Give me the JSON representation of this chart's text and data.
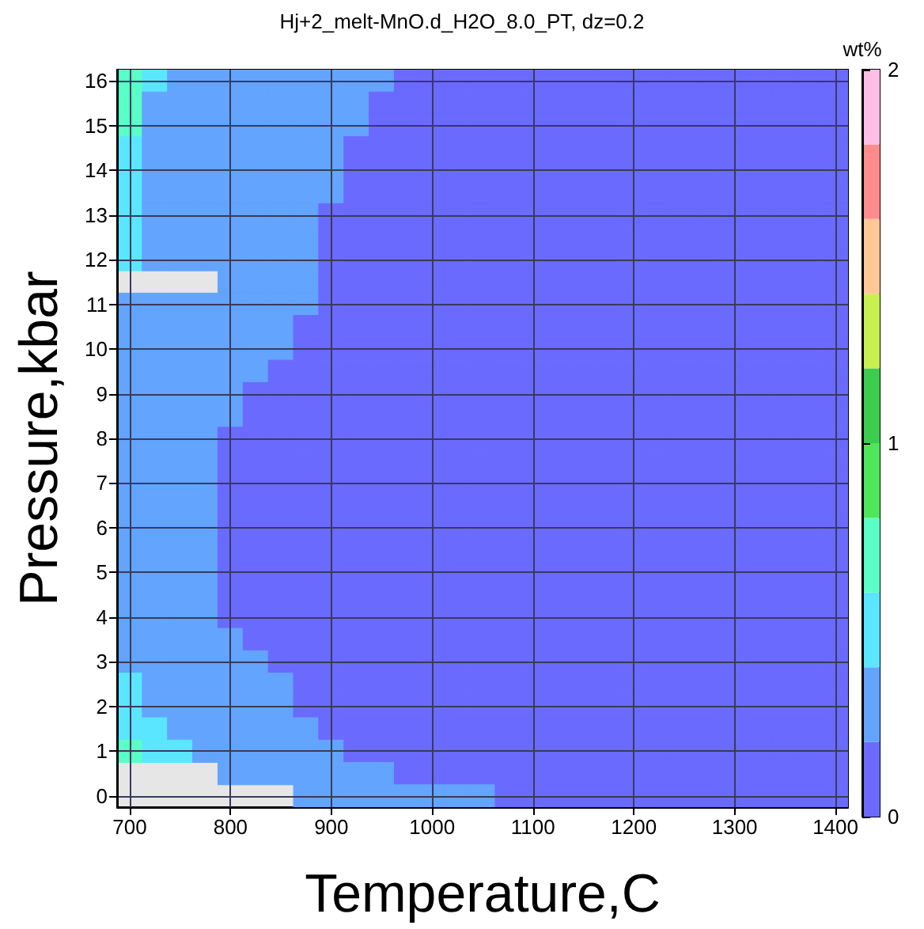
{
  "chart_data": {
    "type": "heatmap",
    "title": "Hj+2_melt-MnO.d_H2O_8.0_PT, dz=0.2",
    "xlabel": "Temperature,C",
    "ylabel": "Pressure,kbar",
    "clabel": "wt%",
    "categories": [
      "700",
      null,
      null,
      null,
      "800",
      null,
      null,
      null,
      "900",
      null,
      null,
      null,
      "1000",
      null,
      null,
      null,
      "1100",
      null,
      null,
      null,
      "1200",
      null,
      null,
      null,
      "1300",
      null,
      null,
      null,
      "1400"
    ],
    "y_categories": [
      "16",
      null,
      "15",
      null,
      "14",
      null,
      "13",
      null,
      "12",
      null,
      "11",
      null,
      "10",
      null,
      "9",
      null,
      "8",
      null,
      "7",
      null,
      "6",
      null,
      "5",
      null,
      "4",
      null,
      "3",
      null,
      "2",
      null,
      "1",
      null,
      "0"
    ],
    "clim": [
      0,
      2
    ],
    "cticks": [
      0,
      1,
      2
    ],
    "grid": true,
    "cells": [
      [
        0.7,
        0.5,
        0.3,
        0.3,
        0.3,
        0.3,
        0.3,
        0.3,
        0.3,
        0.3,
        0.3,
        0.1,
        0.1,
        0.1,
        0.1,
        0.1,
        0.1,
        0.1,
        0.1,
        0.1,
        0.1,
        0.1,
        0.1,
        0.1,
        0.1,
        0.1,
        0.1,
        0.1,
        0.1
      ],
      [
        0.7,
        0.3,
        0.3,
        0.3,
        0.3,
        0.3,
        0.3,
        0.3,
        0.3,
        0.3,
        0.1,
        0.1,
        0.1,
        0.1,
        0.1,
        0.1,
        0.1,
        0.1,
        0.1,
        0.1,
        0.1,
        0.1,
        0.1,
        0.1,
        0.1,
        0.1,
        0.1,
        0.1,
        0.1
      ],
      [
        0.7,
        0.3,
        0.3,
        0.3,
        0.3,
        0.3,
        0.3,
        0.3,
        0.3,
        0.3,
        0.1,
        0.1,
        0.1,
        0.1,
        0.1,
        0.1,
        0.1,
        0.1,
        0.1,
        0.1,
        0.1,
        0.1,
        0.1,
        0.1,
        0.1,
        0.1,
        0.1,
        0.1,
        0.1
      ],
      [
        0.5,
        0.3,
        0.3,
        0.3,
        0.3,
        0.3,
        0.3,
        0.3,
        0.3,
        0.1,
        0.1,
        0.1,
        0.1,
        0.1,
        0.1,
        0.1,
        0.1,
        0.1,
        0.1,
        0.1,
        0.1,
        0.1,
        0.1,
        0.1,
        0.1,
        0.1,
        0.1,
        0.1,
        0.1
      ],
      [
        0.5,
        0.3,
        0.3,
        0.3,
        0.3,
        0.3,
        0.3,
        0.3,
        0.3,
        0.1,
        0.1,
        0.1,
        0.1,
        0.1,
        0.1,
        0.1,
        0.1,
        0.1,
        0.1,
        0.1,
        0.1,
        0.1,
        0.1,
        0.1,
        0.1,
        0.1,
        0.1,
        0.1,
        0.1
      ],
      [
        0.5,
        0.3,
        0.3,
        0.3,
        0.3,
        0.3,
        0.3,
        0.3,
        0.3,
        0.1,
        0.1,
        0.1,
        0.1,
        0.1,
        0.1,
        0.1,
        0.1,
        0.1,
        0.1,
        0.1,
        0.1,
        0.1,
        0.1,
        0.1,
        0.1,
        0.1,
        0.1,
        0.1,
        0.1
      ],
      [
        0.5,
        0.3,
        0.3,
        0.3,
        0.3,
        0.3,
        0.3,
        0.3,
        0.1,
        0.1,
        0.1,
        0.1,
        0.1,
        0.1,
        0.1,
        0.1,
        0.1,
        0.1,
        0.1,
        0.1,
        0.1,
        0.1,
        0.1,
        0.1,
        0.1,
        0.1,
        0.1,
        0.1,
        0.1
      ],
      [
        0.5,
        0.3,
        0.3,
        0.3,
        0.3,
        0.3,
        0.3,
        0.3,
        0.1,
        0.1,
        0.1,
        0.1,
        0.1,
        0.1,
        0.1,
        0.1,
        0.1,
        0.1,
        0.1,
        0.1,
        0.1,
        0.1,
        0.1,
        0.1,
        0.1,
        0.1,
        0.1,
        0.1,
        0.1
      ],
      [
        0.5,
        0.3,
        0.3,
        0.3,
        0.3,
        0.3,
        0.3,
        0.3,
        0.1,
        0.1,
        0.1,
        0.1,
        0.1,
        0.1,
        0.1,
        0.1,
        0.1,
        0.1,
        0.1,
        0.1,
        0.1,
        0.1,
        0.1,
        0.1,
        0.1,
        0.1,
        0.1,
        0.1,
        0.1
      ],
      [
        null,
        null,
        null,
        null,
        0.3,
        0.3,
        0.3,
        0.3,
        0.1,
        0.1,
        0.1,
        0.1,
        0.1,
        0.1,
        0.1,
        0.1,
        0.1,
        0.1,
        0.1,
        0.1,
        0.1,
        0.1,
        0.1,
        0.1,
        0.1,
        0.1,
        0.1,
        0.1,
        0.1
      ],
      [
        0.3,
        0.3,
        0.3,
        0.3,
        0.3,
        0.3,
        0.3,
        0.3,
        0.1,
        0.1,
        0.1,
        0.1,
        0.1,
        0.1,
        0.1,
        0.1,
        0.1,
        0.1,
        0.1,
        0.1,
        0.1,
        0.1,
        0.1,
        0.1,
        0.1,
        0.1,
        0.1,
        0.1,
        0.1
      ],
      [
        0.3,
        0.3,
        0.3,
        0.3,
        0.3,
        0.3,
        0.3,
        0.1,
        0.1,
        0.1,
        0.1,
        0.1,
        0.1,
        0.1,
        0.1,
        0.1,
        0.1,
        0.1,
        0.1,
        0.1,
        0.1,
        0.1,
        0.1,
        0.1,
        0.1,
        0.1,
        0.1,
        0.1,
        0.1
      ],
      [
        0.3,
        0.3,
        0.3,
        0.3,
        0.3,
        0.3,
        0.3,
        0.1,
        0.1,
        0.1,
        0.1,
        0.1,
        0.1,
        0.1,
        0.1,
        0.1,
        0.1,
        0.1,
        0.1,
        0.1,
        0.1,
        0.1,
        0.1,
        0.1,
        0.1,
        0.1,
        0.1,
        0.1,
        0.1
      ],
      [
        0.3,
        0.3,
        0.3,
        0.3,
        0.3,
        0.3,
        0.1,
        0.1,
        0.1,
        0.1,
        0.1,
        0.1,
        0.1,
        0.1,
        0.1,
        0.1,
        0.1,
        0.1,
        0.1,
        0.1,
        0.1,
        0.1,
        0.1,
        0.1,
        0.1,
        0.1,
        0.1,
        0.1,
        0.1
      ],
      [
        0.3,
        0.3,
        0.3,
        0.3,
        0.3,
        0.1,
        0.1,
        0.1,
        0.1,
        0.1,
        0.1,
        0.1,
        0.1,
        0.1,
        0.1,
        0.1,
        0.1,
        0.1,
        0.1,
        0.1,
        0.1,
        0.1,
        0.1,
        0.1,
        0.1,
        0.1,
        0.1,
        0.1,
        0.1
      ],
      [
        0.3,
        0.3,
        0.3,
        0.3,
        0.3,
        0.1,
        0.1,
        0.1,
        0.1,
        0.1,
        0.1,
        0.1,
        0.1,
        0.1,
        0.1,
        0.1,
        0.1,
        0.1,
        0.1,
        0.1,
        0.1,
        0.1,
        0.1,
        0.1,
        0.1,
        0.1,
        0.1,
        0.1,
        0.1
      ],
      [
        0.3,
        0.3,
        0.3,
        0.3,
        0.1,
        0.1,
        0.1,
        0.1,
        0.1,
        0.1,
        0.1,
        0.1,
        0.1,
        0.1,
        0.1,
        0.1,
        0.1,
        0.1,
        0.1,
        0.1,
        0.1,
        0.1,
        0.1,
        0.1,
        0.1,
        0.1,
        0.1,
        0.1,
        0.1
      ],
      [
        0.3,
        0.3,
        0.3,
        0.3,
        0.1,
        0.1,
        0.1,
        0.1,
        0.1,
        0.1,
        0.1,
        0.1,
        0.1,
        0.1,
        0.1,
        0.1,
        0.1,
        0.1,
        0.1,
        0.1,
        0.1,
        0.1,
        0.1,
        0.1,
        0.1,
        0.1,
        0.1,
        0.1,
        0.1
      ],
      [
        0.3,
        0.3,
        0.3,
        0.3,
        0.1,
        0.1,
        0.1,
        0.1,
        0.1,
        0.1,
        0.1,
        0.1,
        0.1,
        0.1,
        0.1,
        0.1,
        0.1,
        0.1,
        0.1,
        0.1,
        0.1,
        0.1,
        0.1,
        0.1,
        0.1,
        0.1,
        0.1,
        0.1,
        0.1
      ],
      [
        0.3,
        0.3,
        0.3,
        0.3,
        0.1,
        0.1,
        0.1,
        0.1,
        0.1,
        0.1,
        0.1,
        0.1,
        0.1,
        0.1,
        0.1,
        0.1,
        0.1,
        0.1,
        0.1,
        0.1,
        0.1,
        0.1,
        0.1,
        0.1,
        0.1,
        0.1,
        0.1,
        0.1,
        0.1
      ],
      [
        0.3,
        0.3,
        0.3,
        0.3,
        0.1,
        0.1,
        0.1,
        0.1,
        0.1,
        0.1,
        0.1,
        0.1,
        0.1,
        0.1,
        0.1,
        0.1,
        0.1,
        0.1,
        0.1,
        0.1,
        0.1,
        0.1,
        0.1,
        0.1,
        0.1,
        0.1,
        0.1,
        0.1,
        0.1
      ],
      [
        0.3,
        0.3,
        0.3,
        0.3,
        0.1,
        0.1,
        0.1,
        0.1,
        0.1,
        0.1,
        0.1,
        0.1,
        0.1,
        0.1,
        0.1,
        0.1,
        0.1,
        0.1,
        0.1,
        0.1,
        0.1,
        0.1,
        0.1,
        0.1,
        0.1,
        0.1,
        0.1,
        0.1,
        0.1
      ],
      [
        0.3,
        0.3,
        0.3,
        0.3,
        0.1,
        0.1,
        0.1,
        0.1,
        0.1,
        0.1,
        0.1,
        0.1,
        0.1,
        0.1,
        0.1,
        0.1,
        0.1,
        0.1,
        0.1,
        0.1,
        0.1,
        0.1,
        0.1,
        0.1,
        0.1,
        0.1,
        0.1,
        0.1,
        0.1
      ],
      [
        0.3,
        0.3,
        0.3,
        0.3,
        0.1,
        0.1,
        0.1,
        0.1,
        0.1,
        0.1,
        0.1,
        0.1,
        0.1,
        0.1,
        0.1,
        0.1,
        0.1,
        0.1,
        0.1,
        0.1,
        0.1,
        0.1,
        0.1,
        0.1,
        0.1,
        0.1,
        0.1,
        0.1,
        0.1
      ],
      [
        0.3,
        0.3,
        0.3,
        0.3,
        0.1,
        0.1,
        0.1,
        0.1,
        0.1,
        0.1,
        0.1,
        0.1,
        0.1,
        0.1,
        0.1,
        0.1,
        0.1,
        0.1,
        0.1,
        0.1,
        0.1,
        0.1,
        0.1,
        0.1,
        0.1,
        0.1,
        0.1,
        0.1,
        0.1
      ],
      [
        0.3,
        0.3,
        0.3,
        0.3,
        0.3,
        0.1,
        0.1,
        0.1,
        0.1,
        0.1,
        0.1,
        0.1,
        0.1,
        0.1,
        0.1,
        0.1,
        0.1,
        0.1,
        0.1,
        0.1,
        0.1,
        0.1,
        0.1,
        0.1,
        0.1,
        0.1,
        0.1,
        0.1,
        0.1
      ],
      [
        0.3,
        0.3,
        0.3,
        0.3,
        0.3,
        0.3,
        0.1,
        0.1,
        0.1,
        0.1,
        0.1,
        0.1,
        0.1,
        0.1,
        0.1,
        0.1,
        0.1,
        0.1,
        0.1,
        0.1,
        0.1,
        0.1,
        0.1,
        0.1,
        0.1,
        0.1,
        0.1,
        0.1,
        0.1
      ],
      [
        0.5,
        0.3,
        0.3,
        0.3,
        0.3,
        0.3,
        0.3,
        0.1,
        0.1,
        0.1,
        0.1,
        0.1,
        0.1,
        0.1,
        0.1,
        0.1,
        0.1,
        0.1,
        0.1,
        0.1,
        0.1,
        0.1,
        0.1,
        0.1,
        0.1,
        0.1,
        0.1,
        0.1,
        0.1
      ],
      [
        0.5,
        0.3,
        0.3,
        0.3,
        0.3,
        0.3,
        0.3,
        0.1,
        0.1,
        0.1,
        0.1,
        0.1,
        0.1,
        0.1,
        0.1,
        0.1,
        0.1,
        0.1,
        0.1,
        0.1,
        0.1,
        0.1,
        0.1,
        0.1,
        0.1,
        0.1,
        0.1,
        0.1,
        0.1
      ],
      [
        0.5,
        0.5,
        0.3,
        0.3,
        0.3,
        0.3,
        0.3,
        0.3,
        0.1,
        0.1,
        0.1,
        0.1,
        0.1,
        0.1,
        0.1,
        0.1,
        0.1,
        0.1,
        0.1,
        0.1,
        0.1,
        0.1,
        0.1,
        0.1,
        0.1,
        0.1,
        0.1,
        0.1,
        0.1
      ],
      [
        0.7,
        0.5,
        0.5,
        0.3,
        0.3,
        0.3,
        0.3,
        0.3,
        0.3,
        0.1,
        0.1,
        0.1,
        0.1,
        0.1,
        0.1,
        0.1,
        0.1,
        0.1,
        0.1,
        0.1,
        0.1,
        0.1,
        0.1,
        0.1,
        0.1,
        0.1,
        0.1,
        0.1,
        0.1
      ],
      [
        null,
        null,
        null,
        null,
        0.3,
        0.3,
        0.3,
        0.3,
        0.3,
        0.3,
        0.3,
        0.1,
        0.1,
        0.1,
        0.1,
        0.1,
        0.1,
        0.1,
        0.1,
        0.1,
        0.1,
        0.1,
        0.1,
        0.1,
        0.1,
        0.1,
        0.1,
        0.1,
        0.1
      ],
      [
        null,
        null,
        null,
        null,
        null,
        null,
        null,
        0.3,
        0.3,
        0.3,
        0.3,
        0.3,
        0.3,
        0.3,
        0.3,
        0.1,
        0.1,
        0.1,
        0.1,
        0.1,
        0.1,
        0.1,
        0.1,
        0.1,
        0.1,
        0.1,
        0.1,
        0.1,
        0.1
      ]
    ]
  }
}
